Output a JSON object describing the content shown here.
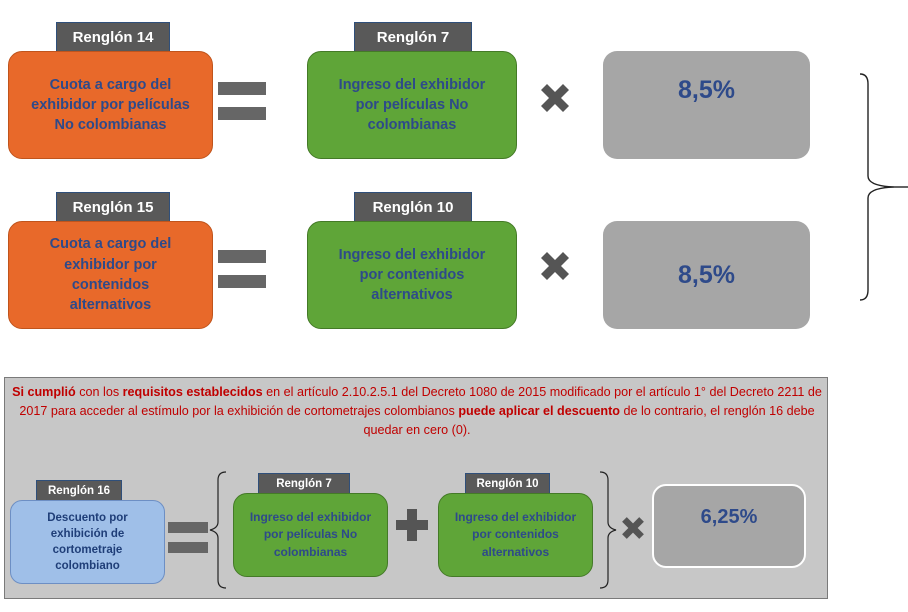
{
  "top": {
    "row1": {
      "left_tab": "Renglón 14",
      "left_box": "Cuota a cargo del exhibidor por películas No colombianas",
      "mid_tab": "Renglón 7",
      "mid_box": "Ingreso del exhibidor por películas No colombianas",
      "rate": "8,5%"
    },
    "row2": {
      "left_tab": "Renglón 15",
      "left_box": "Cuota a cargo del exhibidor por contenidos alternativos",
      "mid_tab": "Renglón 10",
      "mid_box": "Ingreso del exhibidor por contenidos alternativos",
      "rate": "8,5%"
    }
  },
  "notice": {
    "p1_bold": "Si cumplió",
    "p2": " con los ",
    "p3_bold": "requisitos establecidos",
    "p4": " en el artículo 2.10.2.5.1 del Decreto 1080 de 2015 modificado por el artículo 1° del Decreto 2211 de 2017 para acceder al estímulo por la exhibición de cortometrajes colombianos ",
    "p5_bold": "puede aplicar el descuento",
    "p6": " de lo contrario, el renglón 16 debe quedar en cero (0)."
  },
  "bottom": {
    "left_tab": "Renglón 16",
    "left_box": "Descuento por exhibición de cortometraje colombiano",
    "mid1_tab": "Renglón 7",
    "mid1_box": "Ingreso del exhibidor por películas No colombianas",
    "mid2_tab": "Renglón 10",
    "mid2_box": "Ingreso del exhibidor por contenidos alternativos",
    "rate": "6,25%"
  },
  "colors": {
    "orange": "#e8692a",
    "green": "#5fa538",
    "gray": "#a6a6a6",
    "blue_box": "#9fbfe8",
    "tab": "#595959",
    "text_blue": "#2e4a8a",
    "notice_red": "#c00000"
  },
  "icons": [
    "equals-icon",
    "multiply-icon",
    "plus-icon",
    "brace-icon"
  ]
}
